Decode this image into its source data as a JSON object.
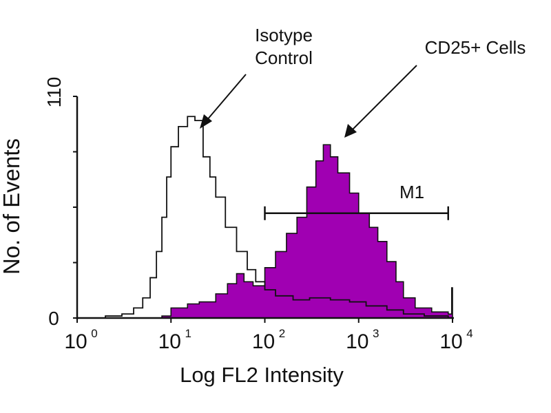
{
  "chart_data": {
    "type": "area",
    "title": "",
    "xlabel": "Log FL2 Intensity",
    "ylabel": "No. of Events",
    "xscale": "log",
    "xlim": [
      1,
      10000
    ],
    "ylim": [
      0,
      110
    ],
    "x_tick_labels": [
      {
        "base": "10",
        "exp": "0"
      },
      {
        "base": "10",
        "exp": "1"
      },
      {
        "base": "10",
        "exp": "2"
      },
      {
        "base": "10",
        "exp": "3"
      },
      {
        "base": "10",
        "exp": "4"
      }
    ],
    "y_tick_labels": [
      "0",
      "110"
    ],
    "y_ticks": [
      0,
      27.5,
      55,
      82.5,
      110
    ],
    "grid": false,
    "colors": {
      "fill": "#a000b2",
      "line": "#111111"
    },
    "series": [
      {
        "style": "outline",
        "x": [
          1.4,
          2,
          3,
          4,
          5,
          6,
          7,
          8,
          9,
          10,
          12,
          15,
          18,
          22,
          26,
          30,
          38,
          50,
          65,
          80,
          100,
          130,
          200,
          300,
          500,
          800,
          1200,
          2000,
          3000,
          5000,
          9000
        ],
        "y": [
          0,
          1,
          2,
          5,
          10,
          20,
          33,
          50,
          70,
          85,
          95,
          100,
          98,
          80,
          70,
          60,
          45,
          33,
          24,
          18,
          14,
          11,
          9,
          10,
          9,
          8,
          6,
          4,
          2,
          1,
          0
        ]
      },
      {
        "style": "filled",
        "x": [
          5,
          8,
          10,
          15,
          20,
          30,
          40,
          50,
          60,
          75,
          100,
          130,
          170,
          220,
          280,
          350,
          420,
          500,
          600,
          800,
          1000,
          1300,
          1600,
          2000,
          2500,
          3000,
          4000,
          6000,
          9000,
          9500,
          9800,
          10000
        ],
        "y": [
          0,
          1,
          5,
          7,
          8,
          12,
          17,
          22,
          18,
          16,
          25,
          33,
          42,
          50,
          65,
          78,
          86,
          80,
          72,
          62,
          52,
          45,
          38,
          28,
          18,
          10,
          5,
          3,
          2,
          2,
          15,
          0
        ]
      }
    ],
    "annotations": [
      {
        "lines": [
          "Isotype",
          "Control"
        ]
      },
      {
        "lines": [
          "CD25+ Cells"
        ]
      }
    ],
    "marker": {
      "label": "M1",
      "x_start": 100,
      "x_end": 9000,
      "y": 52
    }
  }
}
